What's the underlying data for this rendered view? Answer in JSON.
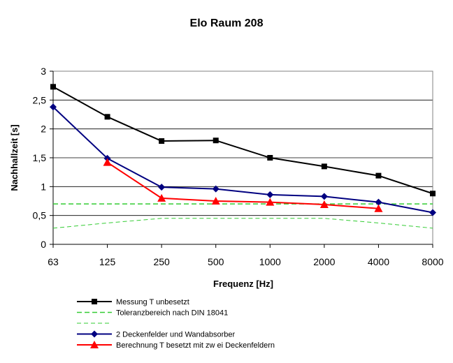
{
  "chart_data": {
    "type": "line",
    "title": "Elo Raum 208",
    "xlabel": "Frequenz [Hz]",
    "ylabel": "Nachhallzeit [s]",
    "categories": [
      "63",
      "125",
      "250",
      "500",
      "1000",
      "2000",
      "4000",
      "8000"
    ],
    "yticks": [
      "0",
      "0,5",
      "1",
      "1,5",
      "2",
      "2,5",
      "3"
    ],
    "ylim": [
      0,
      3
    ],
    "grid": "horizontal",
    "legend_position": "bottom",
    "series": [
      {
        "name": "Messung T unbesetzt",
        "values": [
          2.73,
          2.21,
          1.79,
          1.8,
          1.5,
          1.35,
          1.19,
          0.88
        ],
        "color": "#000000",
        "style": "solid",
        "marker": "square"
      },
      {
        "name": "Toleranzbereich nach DIN 18041",
        "values": [
          0.7,
          0.7,
          0.7,
          0.7,
          0.7,
          0.7,
          0.7,
          0.7
        ],
        "color": "#33cc33",
        "style": "dashed",
        "marker": "none"
      },
      {
        "name": "",
        "values": [
          0.28,
          0.37,
          0.45,
          0.45,
          0.45,
          0.45,
          0.37,
          0.28
        ],
        "color": "#33cc33",
        "style": "dashed-thin",
        "marker": "none"
      },
      {
        "name": "2 Deckenfelder und Wandabsorber",
        "values": [
          2.38,
          1.49,
          0.99,
          0.96,
          0.86,
          0.83,
          0.73,
          0.55
        ],
        "color": "#000080",
        "style": "solid",
        "marker": "diamond"
      },
      {
        "name": "Berechnung T besetzt mit zw ei Deckenfeldern",
        "values": [
          null,
          1.42,
          0.8,
          0.75,
          0.73,
          0.69,
          0.62,
          null
        ],
        "color": "#ff0000",
        "style": "solid",
        "marker": "triangle"
      }
    ]
  }
}
